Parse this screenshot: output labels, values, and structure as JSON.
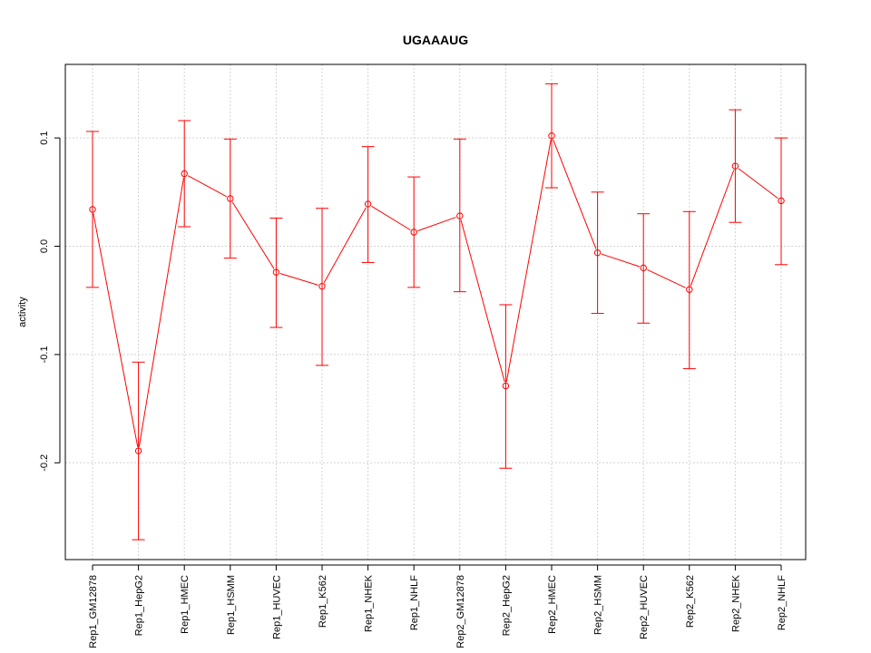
{
  "chart_data": {
    "type": "line",
    "title": "UGAAAUG",
    "xlabel": "",
    "ylabel": "activity",
    "ylim": [
      -0.29,
      0.17
    ],
    "yticks": [
      -0.2,
      -0.1,
      0.0,
      0.1
    ],
    "ytick_labels": [
      "-0.2",
      "-0.1",
      "0.0",
      "0.1"
    ],
    "grid": true,
    "categories": [
      "Rep1_GM12878",
      "Rep1_HepG2",
      "Rep1_HMEC",
      "Rep1_HSMM",
      "Rep1_HUVEC",
      "Rep1_K562",
      "Rep1_NHEK",
      "Rep1_NHLF",
      "Rep2_GM12878",
      "Rep2_HepG2",
      "Rep2_HMEC",
      "Rep2_HSMM",
      "Rep2_HUVEC",
      "Rep2_K562",
      "Rep2_NHEK",
      "Rep2_NHLF"
    ],
    "series": [
      {
        "name": "activity",
        "color": "#ff0000",
        "values": [
          0.034,
          -0.189,
          0.067,
          0.044,
          -0.024,
          -0.037,
          0.039,
          0.013,
          0.028,
          -0.129,
          0.102,
          -0.006,
          -0.02,
          -0.04,
          0.074,
          0.042
        ],
        "upper": [
          0.106,
          -0.107,
          0.116,
          0.099,
          0.026,
          0.035,
          0.092,
          0.064,
          0.099,
          -0.054,
          0.15,
          0.05,
          0.03,
          0.032,
          0.126,
          0.1
        ],
        "lower": [
          -0.038,
          -0.271,
          0.018,
          -0.011,
          -0.075,
          -0.11,
          -0.015,
          -0.038,
          -0.042,
          -0.205,
          0.054,
          -0.062,
          -0.071,
          -0.113,
          0.022,
          -0.017
        ]
      }
    ]
  }
}
